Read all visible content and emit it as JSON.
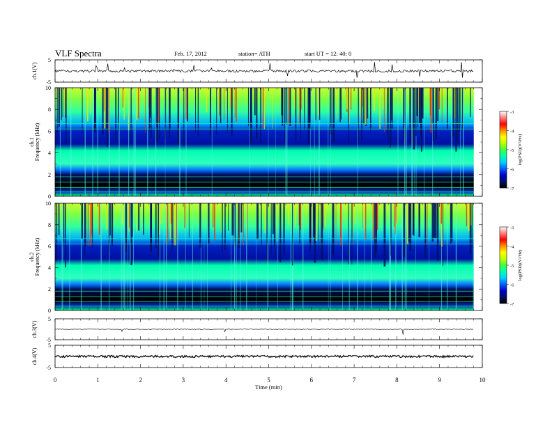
{
  "header": {
    "title": "VLF  Spectra",
    "date": "Feb. 17, 2012",
    "station": "station= ATH",
    "start": "start  UT  =    12: 40: 0"
  },
  "chart_data": [
    {
      "type": "line",
      "panel": "ch1-waveform",
      "ylabel": "ch.1(V)",
      "ylim": [
        -5,
        5
      ],
      "yticks": [
        "5",
        "-5"
      ],
      "xlim": [
        0,
        10
      ],
      "x": [
        0,
        1,
        2,
        3,
        4,
        5,
        6,
        7,
        8,
        9,
        9.8
      ],
      "values": [
        0.1,
        0.1,
        0.1,
        0.1,
        0.1,
        0.1,
        0.1,
        0.1,
        0.1,
        0.1,
        0.1
      ]
    },
    {
      "type": "heatmap",
      "panel": "ch1-spectrogram",
      "ylabel": "ch.1\nFrequency (kHz)",
      "ylim": [
        0,
        10
      ],
      "yticks": [
        "0",
        "2",
        "4",
        "6",
        "8",
        "10"
      ],
      "xlim": [
        0,
        10
      ],
      "colorbar": {
        "label": "log(PSD)(V²/Hz)",
        "range": [
          -7,
          -3
        ],
        "ticks": [
          "-3",
          "-4",
          "-5",
          "-6",
          "-7"
        ]
      }
    },
    {
      "type": "heatmap",
      "panel": "ch2-spectrogram",
      "ylabel": "ch.2\nFrequency (kHz)",
      "ylim": [
        0,
        10
      ],
      "yticks": [
        "0",
        "2",
        "4",
        "6",
        "8",
        "10"
      ],
      "xlim": [
        0,
        10
      ],
      "colorbar": {
        "label": "log(PSD)(V²/Hz)",
        "range": [
          -7,
          -3
        ],
        "ticks": [
          "-3",
          "-4",
          "-5",
          "-6",
          "-7"
        ]
      }
    },
    {
      "type": "line",
      "panel": "ch3-waveform",
      "ylabel": "ch.3(V)",
      "ylim": [
        -5,
        5
      ],
      "yticks": [
        "5",
        "-5"
      ],
      "xlim": [
        0,
        10
      ],
      "x": [
        0,
        9.8
      ],
      "values": [
        0,
        0
      ]
    },
    {
      "type": "line",
      "panel": "ch4-waveform",
      "ylabel": "ch.4(V)",
      "ylim": [
        -5,
        5
      ],
      "yticks": [
        "5",
        "-5"
      ],
      "xlim": [
        0,
        10
      ],
      "x": [
        0,
        9.8
      ],
      "values": [
        0,
        0
      ]
    }
  ],
  "xaxis": {
    "label": "Time  (min)",
    "ticks": [
      "0",
      "1",
      "2",
      "3",
      "4",
      "5",
      "6",
      "7",
      "8",
      "9",
      "10"
    ]
  },
  "colormap": [
    "#000000",
    "#001060",
    "#0000cc",
    "#0060ff",
    "#00d0ff",
    "#00ffb0",
    "#40ff40",
    "#c0ff00",
    "#ffff00",
    "#ff9000",
    "#ff0000",
    "#ff8080",
    "#ffffff"
  ]
}
